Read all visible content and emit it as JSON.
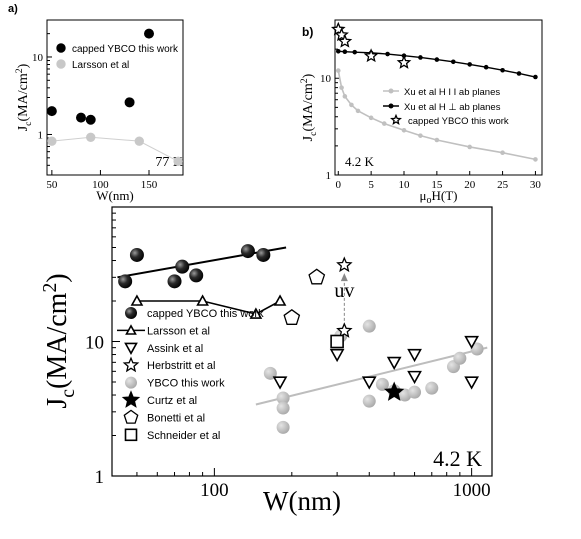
{
  "chart_data": [
    {
      "panel": "a)",
      "type": "scatter",
      "xlabel": "W(nm)",
      "ylabel": "Jc(MA/cm2)",
      "xscale": "linear",
      "yscale": "log",
      "xlim": [
        45,
        185
      ],
      "ylim": [
        0.3,
        30
      ],
      "xticks": [
        "50",
        "100",
        "150"
      ],
      "yticks": [
        "1",
        "10"
      ],
      "annotation": "77 K",
      "legend_position": "top-left",
      "series": [
        {
          "name": "capped YBCO this work",
          "marker": "filled-circle",
          "color": "#000000",
          "points": [
            [
              50,
              2.0
            ],
            [
              80,
              1.65
            ],
            [
              90,
              1.55
            ],
            [
              130,
              2.6
            ],
            [
              150,
              20
            ]
          ]
        },
        {
          "name": "Larsson et al",
          "marker": "filled-circle",
          "color": "#c8c8c8",
          "line": true,
          "points": [
            [
              50,
              0.82
            ],
            [
              90,
              0.92
            ],
            [
              140,
              0.82
            ],
            [
              180,
              0.45
            ]
          ]
        }
      ]
    },
    {
      "panel": "b)",
      "type": "line",
      "xlabel": "μoH(T)",
      "ylabel": "Jc(MA/cm2)",
      "xscale": "linear",
      "yscale": "log",
      "xlim": [
        -0.5,
        31
      ],
      "ylim": [
        1,
        40
      ],
      "xticks": [
        "0",
        "5",
        "10",
        "15",
        "20",
        "25",
        "30"
      ],
      "yticks": [
        "1",
        "10"
      ],
      "annotation": "4.2 K",
      "legend_position": "center-right",
      "series": [
        {
          "name": "Xu et al  H I I ab planes",
          "marker": "circle",
          "color": "#c8c8c8",
          "points": [
            [
              0,
              12
            ],
            [
              0.5,
              8
            ],
            [
              1,
              6.5
            ],
            [
              2,
              5.3
            ],
            [
              3,
              4.6
            ],
            [
              5,
              3.9
            ],
            [
              7,
              3.4
            ],
            [
              10,
              2.9
            ],
            [
              12.5,
              2.55
            ],
            [
              15,
              2.3
            ],
            [
              20,
              1.95
            ],
            [
              25,
              1.7
            ],
            [
              30,
              1.45
            ]
          ]
        },
        {
          "name": "Xu et al  H ⊥ ab planes",
          "marker": "circle",
          "color": "#000000",
          "points": [
            [
              0,
              19
            ],
            [
              1,
              18.8
            ],
            [
              2.5,
              18.6
            ],
            [
              5,
              18.3
            ],
            [
              7.5,
              17.8
            ],
            [
              10,
              17.1
            ],
            [
              12.5,
              16.4
            ],
            [
              15,
              15.6
            ],
            [
              17.5,
              14.8
            ],
            [
              20,
              13.9
            ],
            [
              22.5,
              13.0
            ],
            [
              25,
              12.1
            ],
            [
              27.5,
              11.2
            ],
            [
              30,
              10.3
            ]
          ]
        },
        {
          "name": "capped YBCO this work",
          "marker": "star-open",
          "color": "#000000",
          "points": [
            [
              0,
              32
            ],
            [
              0.5,
              28
            ],
            [
              1,
              24
            ],
            [
              5,
              17
            ],
            [
              10,
              14.5
            ]
          ]
        }
      ]
    },
    {
      "panel": "main",
      "type": "scatter",
      "xlabel": "W(nm)",
      "ylabel": "Jc(MA/cm2)",
      "xscale": "log",
      "yscale": "log",
      "xlim": [
        40,
        1200
      ],
      "ylim": [
        1,
        100
      ],
      "xticks": [
        "100",
        "1000"
      ],
      "yticks": [
        "1",
        "10"
      ],
      "annotation": "4.2 K",
      "arrow_label": "uv",
      "legend_position": "bottom-left",
      "series": [
        {
          "name": "capped YBCO this work",
          "marker": "sphere-dark",
          "color": "#222222",
          "points": [
            [
              45,
              28
            ],
            [
              50,
              44
            ],
            [
              70,
              28
            ],
            [
              75,
              36
            ],
            [
              85,
              31
            ],
            [
              135,
              47
            ],
            [
              155,
              44
            ]
          ],
          "fit": [
            [
              42,
              30
            ],
            [
              190,
              50
            ]
          ]
        },
        {
          "name": "Larsson et al",
          "marker": "triangle-up",
          "color": "#000000",
          "line": true,
          "points": [
            [
              50,
              20
            ],
            [
              90,
              20
            ],
            [
              145,
              16
            ],
            [
              180,
              20
            ]
          ]
        },
        {
          "name": "Assink et al",
          "marker": "triangle-down",
          "color": "#000000",
          "points": [
            [
              180,
              5
            ],
            [
              300,
              8
            ],
            [
              400,
              5
            ],
            [
              500,
              7
            ],
            [
              600,
              8
            ],
            [
              600,
              5.5
            ],
            [
              1000,
              10
            ],
            [
              1000,
              5
            ]
          ]
        },
        {
          "name": "Herbstritt et al",
          "marker": "star-open",
          "color": "#000000",
          "points": [
            [
              320,
              37
            ],
            [
              320,
              12
            ]
          ]
        },
        {
          "name": "YBCO this work",
          "marker": "sphere-gray",
          "color": "#b4b4b4",
          "points": [
            [
              165,
              5.8
            ],
            [
              185,
              3.8
            ],
            [
              185,
              3.2
            ],
            [
              185,
              2.3
            ],
            [
              310,
              11
            ],
            [
              400,
              3.6
            ],
            [
              400,
              13
            ],
            [
              450,
              4.8
            ],
            [
              500,
              4.3
            ],
            [
              550,
              4.0
            ],
            [
              600,
              4.2
            ],
            [
              700,
              4.5
            ],
            [
              850,
              6.5
            ],
            [
              900,
              7.5
            ],
            [
              1050,
              8.8
            ]
          ],
          "fit": [
            [
              145,
              3.4
            ],
            [
              1150,
              9.0
            ]
          ]
        },
        {
          "name": "Curtz et al",
          "marker": "star-filled",
          "color": "#000000",
          "points": [
            [
              500,
              4.2
            ]
          ]
        },
        {
          "name": "Bonetti et al",
          "marker": "pentagon-open",
          "color": "#000000",
          "points": [
            [
              200,
              15
            ],
            [
              250,
              30
            ]
          ]
        },
        {
          "name": "Schneider et al",
          "marker": "square-open",
          "color": "#000000",
          "points": [
            [
              300,
              10
            ]
          ]
        }
      ]
    }
  ]
}
